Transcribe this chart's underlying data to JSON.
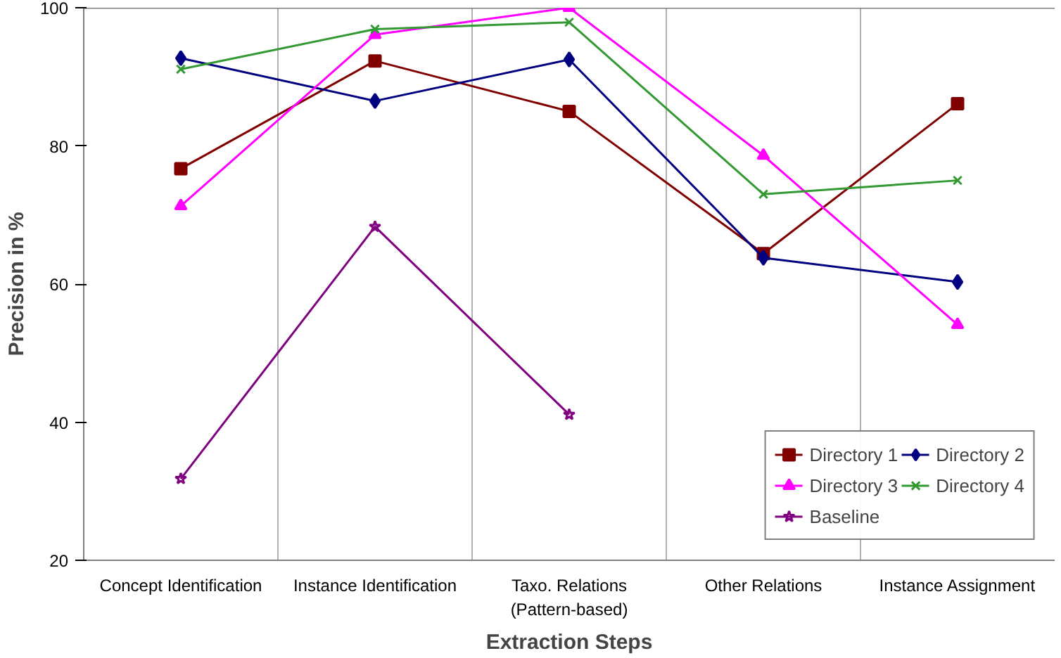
{
  "chart_data": {
    "type": "line",
    "xlabel": "Extraction Steps",
    "ylabel": "Precision in %",
    "categories": [
      "Concept Identification",
      "Instance Identification",
      "Taxo. Relations\n(Pattern-based)",
      "Other Relations",
      "Instance Assignment"
    ],
    "ylim": [
      20,
      100
    ],
    "yticks": [
      20,
      40,
      60,
      80,
      100
    ],
    "grid": "x",
    "legend": "bottom right",
    "series": [
      {
        "name": "Directory 1",
        "color": "#800000",
        "marker": "square",
        "values": [
          76.7,
          92.3,
          85,
          64.4,
          86.1
        ]
      },
      {
        "name": "Directory 2",
        "color": "#000080",
        "marker": "diamond",
        "values": [
          92.7,
          86.5,
          92.5,
          63.8,
          60.3
        ]
      },
      {
        "name": "Directory 3",
        "color": "#ff00ff",
        "marker": "triangle",
        "values": [
          71.3,
          96.1,
          100,
          78.6,
          54.1
        ]
      },
      {
        "name": "Directory 4",
        "color": "#339933",
        "marker": "cross",
        "values": [
          91.1,
          96.9,
          97.9,
          73,
          75
        ]
      },
      {
        "name": "Baseline",
        "color": "#800080",
        "marker": "star",
        "values": [
          31.8,
          68.3,
          41.1,
          null,
          null
        ]
      }
    ]
  }
}
